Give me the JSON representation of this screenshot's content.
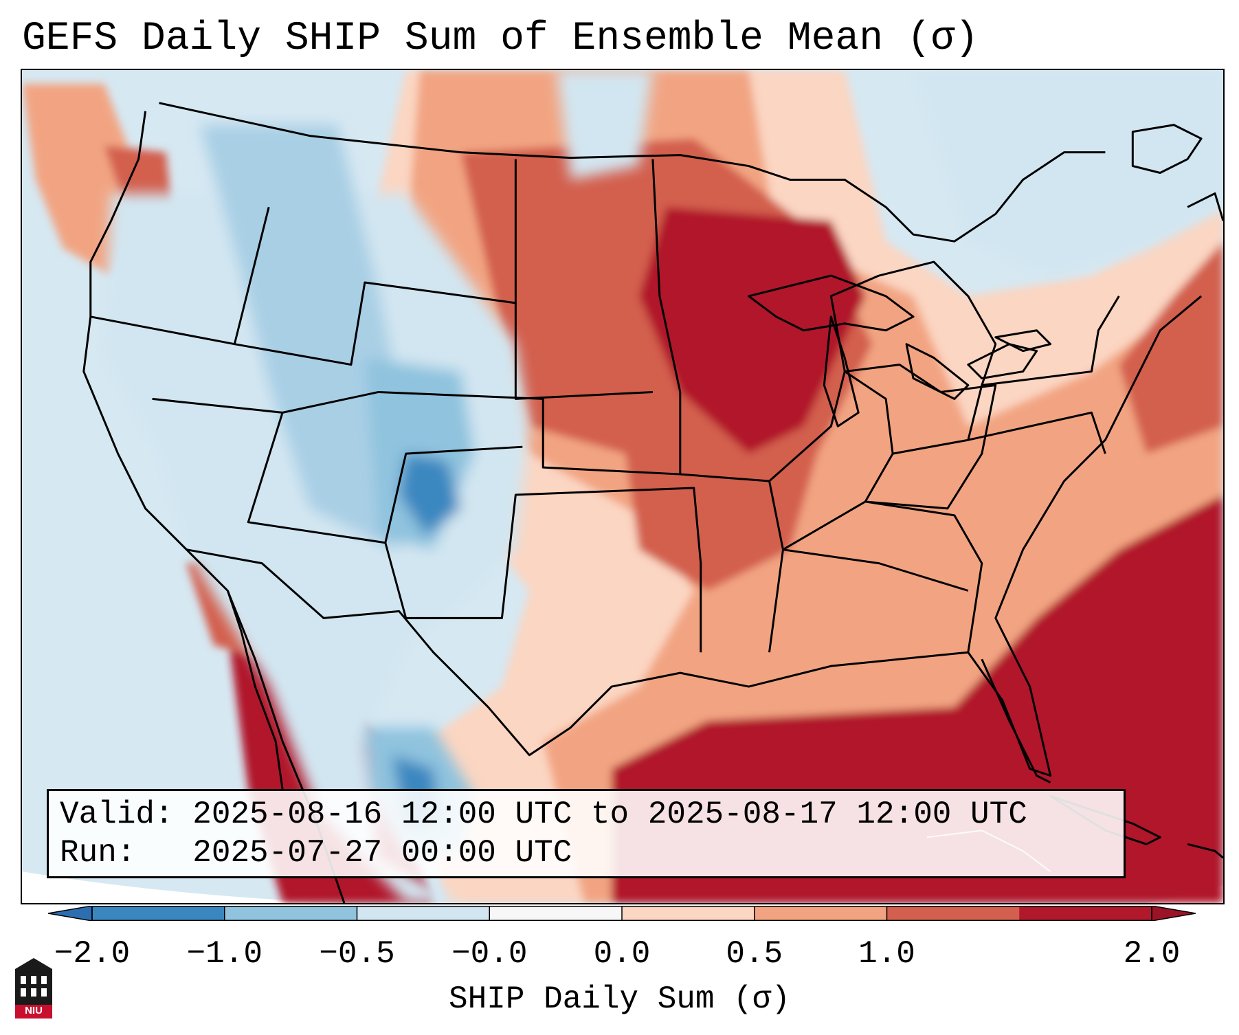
{
  "title": "GEFS Daily SHIP Sum of Ensemble Mean (σ)",
  "info": {
    "valid_line": "Valid: 2025-08-16 12:00 UTC to 2025-08-17 12:00 UTC",
    "run_line": "Run:   2025-07-27 00:00 UTC"
  },
  "colorbar": {
    "label": "SHIP Daily Sum (σ)",
    "ticks": [
      "−2.0",
      "−1.0",
      "−0.5",
      "−0.0",
      "0.0",
      "0.5",
      "1.0",
      "2.0"
    ],
    "colors": [
      "#3a87c0",
      "#8fc3de",
      "#d2e6f1",
      "#f7f7f7",
      "#fbd6c2",
      "#f2a482",
      "#d35f4e",
      "#b1182c"
    ],
    "extend_low_color": "#2c6eb0",
    "extend_high_color": "#9b1327"
  },
  "logo": {
    "text": "NIU",
    "icon": "university-building-icon"
  }
}
